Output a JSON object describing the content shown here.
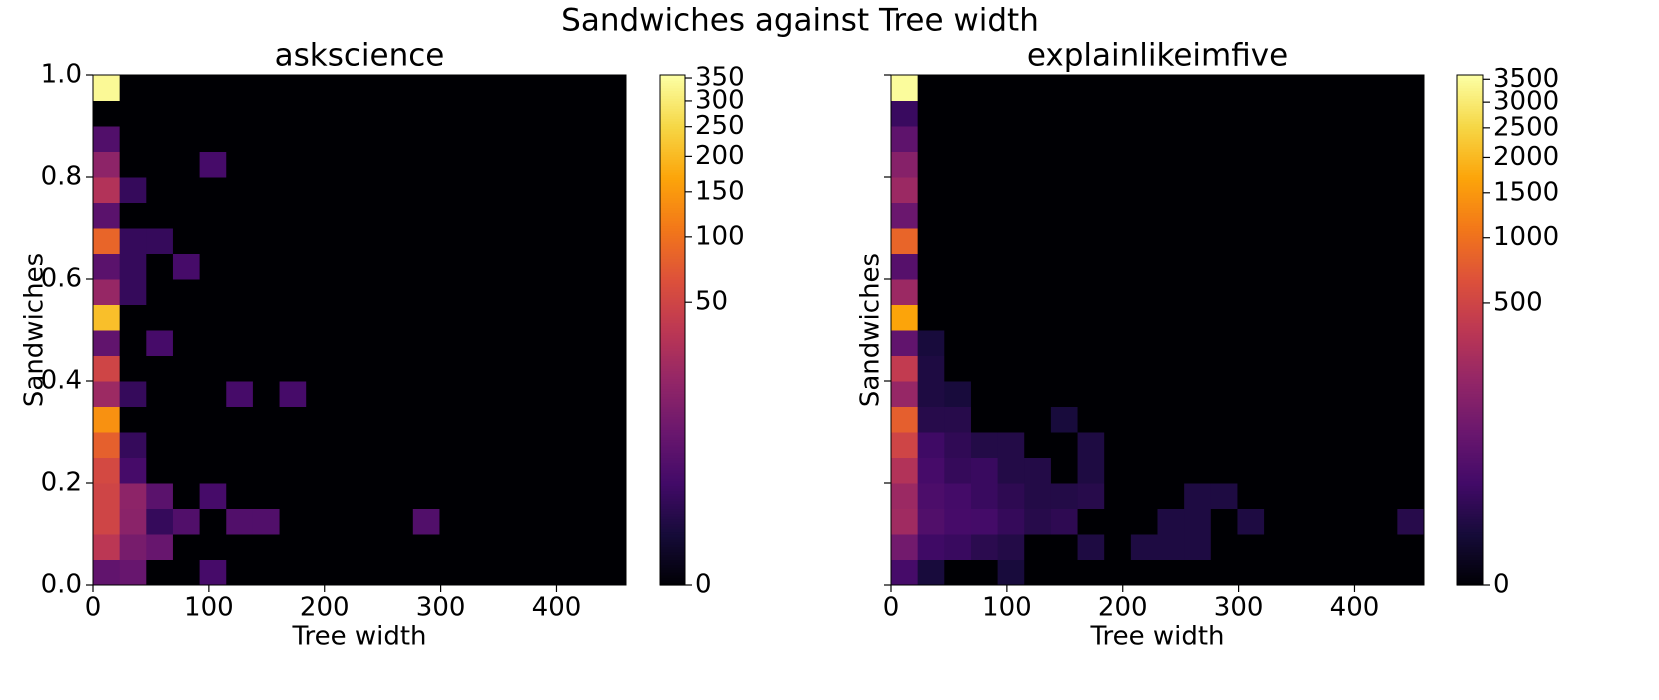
{
  "title": "Sandwiches against Tree width",
  "chart_data": [
    {
      "type": "heatmap",
      "title": "askscience",
      "xlabel": "Tree width",
      "ylabel": "Sandwiches",
      "xlim": [
        0,
        460
      ],
      "ylim": [
        0,
        1
      ],
      "xticks": [
        0,
        100,
        200,
        300,
        400
      ],
      "yticks": [
        {
          "value": 0,
          "label": "0.0"
        },
        0.2,
        0.4,
        0.6,
        0.8,
        {
          "value": 1,
          "label": "1.0"
        }
      ],
      "show_ytick_labels": true,
      "colormap": "inferno",
      "norm": "power",
      "gamma": 0.3,
      "clim": [
        0,
        357
      ],
      "cticks": [
        0,
        50,
        100,
        150,
        200,
        250,
        300,
        350
      ],
      "z": [
        [
          5,
          6,
          0,
          0,
          2,
          0,
          0,
          0,
          0,
          0,
          0,
          0,
          0,
          0,
          0,
          0,
          0,
          0,
          0,
          0
        ],
        [
          35,
          9,
          6,
          0,
          0,
          0,
          0,
          0,
          0,
          0,
          0,
          0,
          0,
          0,
          0,
          0,
          0,
          0,
          0,
          0
        ],
        [
          50,
          14,
          1,
          3,
          0,
          3,
          3,
          0,
          0,
          0,
          0,
          0,
          3,
          0,
          0,
          0,
          0,
          0,
          0,
          0
        ],
        [
          50,
          15,
          4,
          0,
          2,
          0,
          0,
          0,
          0,
          0,
          0,
          0,
          0,
          0,
          0,
          0,
          0,
          0,
          0,
          0
        ],
        [
          55,
          2,
          0,
          0,
          0,
          0,
          0,
          0,
          0,
          0,
          0,
          0,
          0,
          0,
          0,
          0,
          0,
          0,
          0,
          0
        ],
        [
          80,
          1,
          0,
          0,
          0,
          0,
          0,
          0,
          0,
          0,
          0,
          0,
          0,
          0,
          0,
          0,
          0,
          0,
          0,
          0
        ],
        [
          140,
          0,
          0,
          0,
          0,
          0,
          0,
          0,
          0,
          0,
          0,
          0,
          0,
          0,
          0,
          0,
          0,
          0,
          0,
          0
        ],
        [
          20,
          1,
          0,
          0,
          0,
          2,
          0,
          2,
          0,
          0,
          0,
          0,
          0,
          0,
          0,
          0,
          0,
          0,
          0,
          0
        ],
        [
          50,
          0,
          0,
          0,
          0,
          0,
          0,
          0,
          0,
          0,
          0,
          0,
          0,
          0,
          0,
          0,
          0,
          0,
          0,
          0
        ],
        [
          5,
          0,
          2,
          0,
          0,
          0,
          0,
          0,
          0,
          0,
          0,
          0,
          0,
          0,
          0,
          0,
          0,
          0,
          0,
          0
        ],
        [
          210,
          0,
          0,
          0,
          0,
          0,
          0,
          0,
          0,
          0,
          0,
          0,
          0,
          0,
          0,
          0,
          0,
          0,
          0,
          0
        ],
        [
          18,
          1,
          0,
          0,
          0,
          0,
          0,
          0,
          0,
          0,
          0,
          0,
          0,
          0,
          0,
          0,
          0,
          0,
          0,
          0
        ],
        [
          4,
          1,
          0,
          2,
          0,
          0,
          0,
          0,
          0,
          0,
          0,
          0,
          0,
          0,
          0,
          0,
          0,
          0,
          0,
          0
        ],
        [
          85,
          1,
          1,
          0,
          0,
          0,
          0,
          0,
          0,
          0,
          0,
          0,
          0,
          0,
          0,
          0,
          0,
          0,
          0,
          0
        ],
        [
          4,
          0,
          0,
          0,
          0,
          0,
          0,
          0,
          0,
          0,
          0,
          0,
          0,
          0,
          0,
          0,
          0,
          0,
          0,
          0
        ],
        [
          30,
          1,
          0,
          0,
          0,
          0,
          0,
          0,
          0,
          0,
          0,
          0,
          0,
          0,
          0,
          0,
          0,
          0,
          0,
          0
        ],
        [
          15,
          0,
          0,
          0,
          2,
          0,
          0,
          0,
          0,
          0,
          0,
          0,
          0,
          0,
          0,
          0,
          0,
          0,
          0,
          0
        ],
        [
          3,
          0,
          0,
          0,
          0,
          0,
          0,
          0,
          0,
          0,
          0,
          0,
          0,
          0,
          0,
          0,
          0,
          0,
          0,
          0
        ],
        [
          0,
          0,
          0,
          0,
          0,
          0,
          0,
          0,
          0,
          0,
          0,
          0,
          0,
          0,
          0,
          0,
          0,
          0,
          0,
          0
        ],
        [
          340,
          0,
          0,
          0,
          0,
          0,
          0,
          0,
          0,
          0,
          0,
          0,
          0,
          0,
          0,
          0,
          0,
          0,
          0,
          0
        ]
      ]
    },
    {
      "type": "heatmap",
      "title": "explainlikeimfive",
      "xlabel": "Tree width",
      "ylabel": "Sandwiches",
      "xlim": [
        0,
        460
      ],
      "ylim": [
        0,
        1
      ],
      "xticks": [
        0,
        100,
        200,
        300,
        400
      ],
      "yticks": [
        0,
        0.2,
        0.4,
        0.6,
        0.8,
        1
      ],
      "show_ytick_labels": false,
      "colormap": "inferno",
      "norm": "power",
      "gamma": 0.3,
      "clim": [
        0,
        3600
      ],
      "cticks": [
        0,
        500,
        1000,
        1500,
        2000,
        2500,
        3000,
        3500
      ],
      "z": [
        [
          20,
          2,
          0,
          0,
          2,
          0,
          0,
          0,
          0,
          0,
          0,
          0,
          0,
          0,
          0,
          0,
          0,
          0,
          0,
          0
        ],
        [
          80,
          15,
          12,
          6,
          4,
          0,
          0,
          3,
          0,
          3,
          3,
          3,
          0,
          0,
          0,
          0,
          0,
          0,
          0,
          0
        ],
        [
          220,
          30,
          20,
          18,
          10,
          5,
          7,
          0,
          0,
          0,
          3,
          3,
          0,
          3,
          0,
          0,
          0,
          0,
          0,
          5
        ],
        [
          200,
          25,
          18,
          12,
          7,
          4,
          4,
          5,
          0,
          0,
          0,
          3,
          3,
          0,
          0,
          0,
          0,
          0,
          0,
          0
        ],
        [
          300,
          20,
          10,
          12,
          4,
          4,
          0,
          3,
          0,
          0,
          0,
          0,
          0,
          0,
          0,
          0,
          0,
          0,
          0,
          0
        ],
        [
          500,
          15,
          8,
          4,
          4,
          0,
          0,
          3,
          0,
          0,
          0,
          0,
          0,
          0,
          0,
          0,
          0,
          0,
          0,
          0
        ],
        [
          800,
          5,
          5,
          0,
          0,
          0,
          2,
          0,
          0,
          0,
          0,
          0,
          0,
          0,
          0,
          0,
          0,
          0,
          0,
          0
        ],
        [
          180,
          3,
          2,
          0,
          0,
          0,
          0,
          0,
          0,
          0,
          0,
          0,
          0,
          0,
          0,
          0,
          0,
          0,
          0,
          0
        ],
        [
          400,
          3,
          0,
          0,
          0,
          0,
          0,
          0,
          0,
          0,
          0,
          0,
          0,
          0,
          0,
          0,
          0,
          0,
          0,
          0
        ],
        [
          50,
          2,
          0,
          0,
          0,
          0,
          0,
          0,
          0,
          0,
          0,
          0,
          0,
          0,
          0,
          0,
          0,
          0,
          0,
          0
        ],
        [
          1700,
          0,
          0,
          0,
          0,
          0,
          0,
          0,
          0,
          0,
          0,
          0,
          0,
          0,
          0,
          0,
          0,
          0,
          0,
          0
        ],
        [
          200,
          0,
          0,
          0,
          0,
          0,
          0,
          0,
          0,
          0,
          0,
          0,
          0,
          0,
          0,
          0,
          0,
          0,
          0,
          0
        ],
        [
          35,
          0,
          0,
          0,
          0,
          0,
          0,
          0,
          0,
          0,
          0,
          0,
          0,
          0,
          0,
          0,
          0,
          0,
          0,
          0
        ],
        [
          860,
          0,
          0,
          0,
          0,
          0,
          0,
          0,
          0,
          0,
          0,
          0,
          0,
          0,
          0,
          0,
          0,
          0,
          0,
          0
        ],
        [
          65,
          0,
          0,
          0,
          0,
          0,
          0,
          0,
          0,
          0,
          0,
          0,
          0,
          0,
          0,
          0,
          0,
          0,
          0,
          0
        ],
        [
          200,
          0,
          0,
          0,
          0,
          0,
          0,
          0,
          0,
          0,
          0,
          0,
          0,
          0,
          0,
          0,
          0,
          0,
          0,
          0
        ],
        [
          130,
          0,
          0,
          0,
          0,
          0,
          0,
          0,
          0,
          0,
          0,
          0,
          0,
          0,
          0,
          0,
          0,
          0,
          0,
          0
        ],
        [
          46,
          0,
          0,
          0,
          0,
          0,
          0,
          0,
          0,
          0,
          0,
          0,
          0,
          0,
          0,
          0,
          0,
          0,
          0,
          0
        ],
        [
          12,
          0,
          0,
          0,
          0,
          0,
          0,
          0,
          0,
          0,
          0,
          0,
          0,
          0,
          0,
          0,
          0,
          0,
          0,
          0
        ],
        [
          3500,
          0,
          0,
          0,
          0,
          0,
          0,
          0,
          0,
          0,
          0,
          0,
          0,
          0,
          0,
          0,
          0,
          0,
          0,
          0
        ]
      ]
    }
  ]
}
